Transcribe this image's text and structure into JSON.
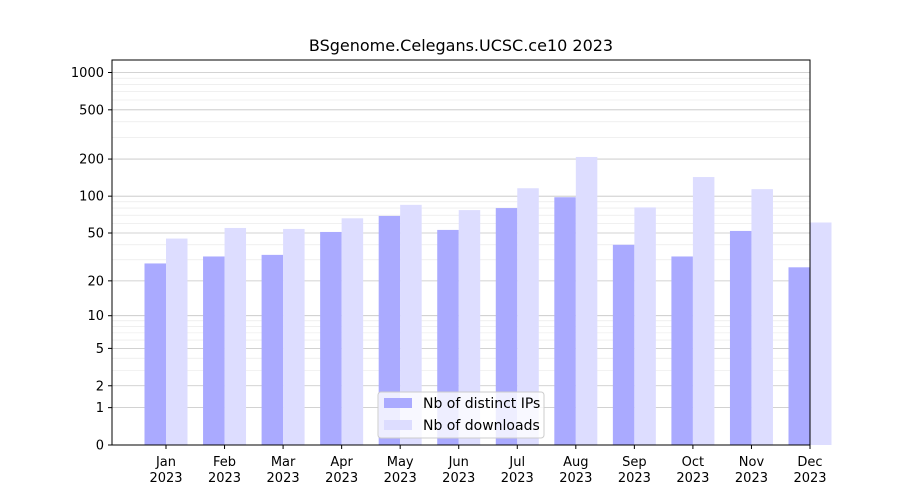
{
  "chart_data": {
    "type": "bar",
    "title": "BSgenome.Celegans.UCSC.ce10 2023",
    "xlabel": "",
    "ylabel": "",
    "y_scale": "log1p",
    "ylim": [
      0,
      1300
    ],
    "y_ticks": [
      {
        "value": 0,
        "label": "0"
      },
      {
        "value": 1,
        "label": "1"
      },
      {
        "value": 2,
        "label": "2"
      },
      {
        "value": 5,
        "label": "5"
      },
      {
        "value": 10,
        "label": "10"
      },
      {
        "value": 20,
        "label": "20"
      },
      {
        "value": 50,
        "label": "50"
      },
      {
        "value": 100,
        "label": "100"
      },
      {
        "value": 200,
        "label": "200"
      },
      {
        "value": 500,
        "label": "500"
      },
      {
        "value": 1000,
        "label": "1000"
      }
    ],
    "categories": [
      {
        "month": "Jan",
        "year": "2023"
      },
      {
        "month": "Feb",
        "year": "2023"
      },
      {
        "month": "Mar",
        "year": "2023"
      },
      {
        "month": "Apr",
        "year": "2023"
      },
      {
        "month": "May",
        "year": "2023"
      },
      {
        "month": "Jun",
        "year": "2023"
      },
      {
        "month": "Jul",
        "year": "2023"
      },
      {
        "month": "Aug",
        "year": "2023"
      },
      {
        "month": "Sep",
        "year": "2023"
      },
      {
        "month": "Oct",
        "year": "2023"
      },
      {
        "month": "Nov",
        "year": "2023"
      },
      {
        "month": "Dec",
        "year": "2023"
      }
    ],
    "series": [
      {
        "name": "Nb of distinct IPs",
        "color": "#aaaaff",
        "values": [
          28,
          32,
          33,
          51,
          69,
          53,
          80,
          98,
          40,
          32,
          52,
          26
        ]
      },
      {
        "name": "Nb of downloads",
        "color": "#ddddff",
        "values": [
          45,
          55,
          54,
          66,
          85,
          77,
          116,
          208,
          81,
          143,
          114,
          61
        ]
      }
    ],
    "grid": true,
    "legend_position": "bottom-center"
  }
}
